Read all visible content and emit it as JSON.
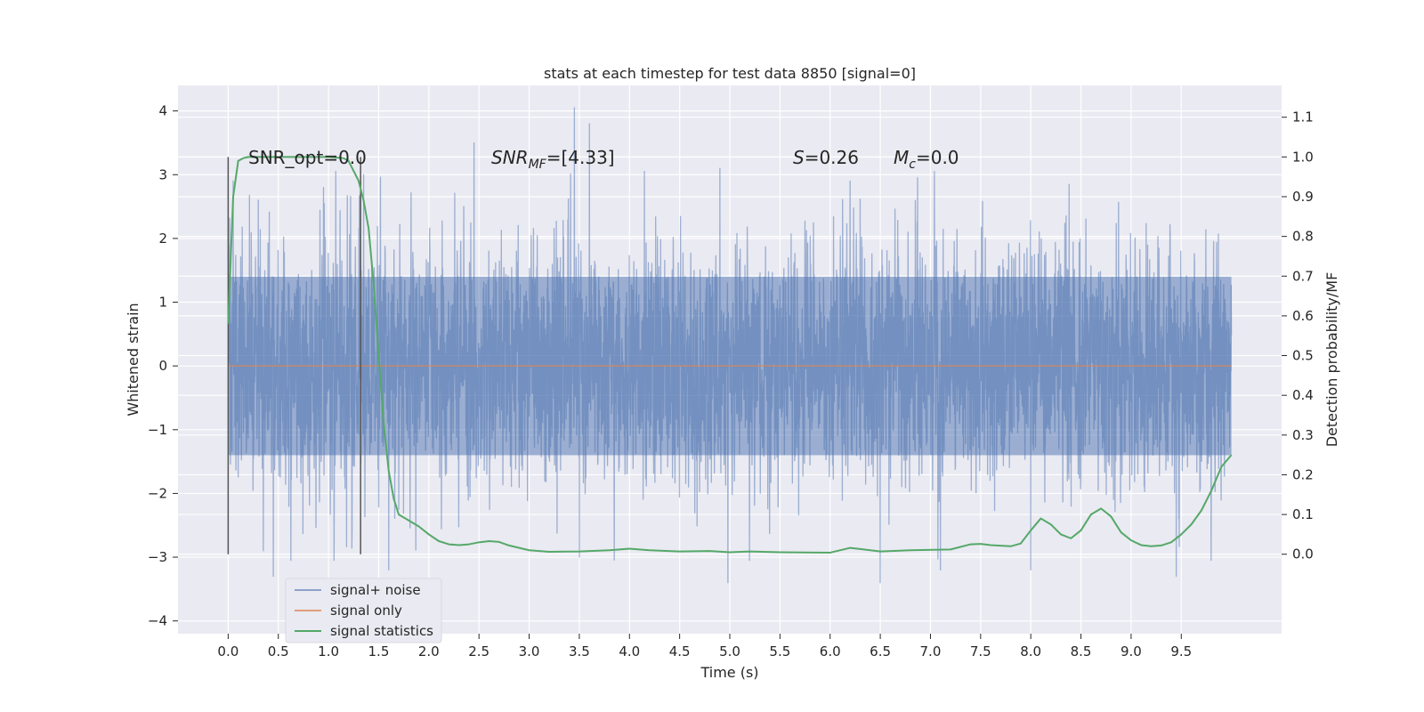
{
  "chart_data": {
    "type": "line",
    "title": "stats at each timestep for test data 8850 [signal=0]",
    "xlabel": "Time (s)",
    "ylabel": "Whitened strain",
    "y2label": "Detection probability/MF",
    "xlim": [
      -0.5,
      10.5
    ],
    "ylim": [
      -4.2,
      4.4
    ],
    "y2lim": [
      -0.2,
      1.18
    ],
    "xticks": [
      0.0,
      0.5,
      1.0,
      1.5,
      2.0,
      2.5,
      3.0,
      3.5,
      4.0,
      4.5,
      5.0,
      5.5,
      6.0,
      6.5,
      7.0,
      7.5,
      8.0,
      8.5,
      9.0,
      9.5
    ],
    "xtick_labels": [
      "0.0",
      "0.5",
      "1.0",
      "1.5",
      "2.0",
      "2.5",
      "3.0",
      "3.5",
      "4.0",
      "4.5",
      "5.0",
      "5.5",
      "6.0",
      "6.5",
      "7.0",
      "7.5",
      "8.0",
      "8.5",
      "9.0",
      "9.5"
    ],
    "yticks": [
      -4,
      -3,
      -2,
      -1,
      0,
      1,
      2,
      3,
      4
    ],
    "ytick_labels": [
      "−4",
      "−3",
      "−2",
      "−1",
      "0",
      "1",
      "2",
      "3",
      "4"
    ],
    "y2ticks": [
      0.0,
      0.1,
      0.2,
      0.3,
      0.4,
      0.5,
      0.6,
      0.7,
      0.8,
      0.9,
      1.0,
      1.1
    ],
    "y2tick_labels": [
      "0.0",
      "0.1",
      "0.2",
      "0.3",
      "0.4",
      "0.5",
      "0.6",
      "0.7",
      "0.8",
      "0.9",
      "1.0",
      "1.1"
    ],
    "grid": true,
    "legend_position": "lower-left",
    "colors": {
      "background": "#eaeaf2",
      "grid": "#ffffff",
      "signal_noise": "#4c72b0",
      "signal_only": "#dd8452",
      "signal_statistics": "#55a868",
      "markers": "#555555"
    },
    "series": [
      {
        "name": "signal+ noise",
        "role": "noise",
        "x_range": [
          0.0,
          10.0
        ],
        "envelope_upper": 1.4,
        "envelope_lower": -1.4,
        "peaks": [
          {
            "x": 0.05,
            "y": 2.9
          },
          {
            "x": 0.3,
            "y": 2.6
          },
          {
            "x": 0.95,
            "y": 2.8
          },
          {
            "x": 1.35,
            "y": 3.0
          },
          {
            "x": 2.45,
            "y": 3.5
          },
          {
            "x": 3.45,
            "y": 4.05
          },
          {
            "x": 3.6,
            "y": 3.8
          },
          {
            "x": 4.9,
            "y": 3.1
          },
          {
            "x": 6.2,
            "y": 2.9
          },
          {
            "x": 8.0,
            "y": 3.4
          },
          {
            "x": 0.35,
            "y": -2.9
          },
          {
            "x": 0.45,
            "y": -3.3
          },
          {
            "x": 1.6,
            "y": -3.2
          },
          {
            "x": 3.5,
            "y": -3.0
          },
          {
            "x": 4.98,
            "y": -3.4
          },
          {
            "x": 6.5,
            "y": -3.4
          },
          {
            "x": 7.1,
            "y": -3.2
          },
          {
            "x": 8.0,
            "y": -3.2
          },
          {
            "x": 9.45,
            "y": -3.3
          }
        ]
      },
      {
        "name": "signal only",
        "role": "signal",
        "x": [
          0.0,
          10.0
        ],
        "y": [
          0.0,
          0.0
        ]
      },
      {
        "name": "signal statistics",
        "role": "statistic",
        "axis": "right",
        "x": [
          0.0,
          0.05,
          0.1,
          0.15,
          0.2,
          0.3,
          0.5,
          0.8,
          1.0,
          1.15,
          1.2,
          1.3,
          1.35,
          1.4,
          1.45,
          1.5,
          1.55,
          1.6,
          1.65,
          1.7,
          1.8,
          1.9,
          2.0,
          2.1,
          2.2,
          2.3,
          2.4,
          2.5,
          2.6,
          2.7,
          2.8,
          3.0,
          3.2,
          3.5,
          3.8,
          4.0,
          4.2,
          4.5,
          4.8,
          5.0,
          5.2,
          5.5,
          6.0,
          6.2,
          6.3,
          6.5,
          6.8,
          7.2,
          7.4,
          7.5,
          7.6,
          7.8,
          7.9,
          8.0,
          8.1,
          8.2,
          8.3,
          8.4,
          8.5,
          8.6,
          8.7,
          8.8,
          8.9,
          9.0,
          9.1,
          9.2,
          9.3,
          9.4,
          9.5,
          9.6,
          9.7,
          9.8,
          9.9,
          10.0
        ],
        "y": [
          0.58,
          0.9,
          0.99,
          0.997,
          1.0,
          1.0,
          1.0,
          1.0,
          1.0,
          0.997,
          0.99,
          0.94,
          0.89,
          0.82,
          0.68,
          0.5,
          0.33,
          0.21,
          0.14,
          0.1,
          0.085,
          0.07,
          0.05,
          0.033,
          0.025,
          0.023,
          0.025,
          0.03,
          0.033,
          0.031,
          0.022,
          0.01,
          0.006,
          0.007,
          0.01,
          0.014,
          0.01,
          0.007,
          0.008,
          0.005,
          0.007,
          0.005,
          0.004,
          0.016,
          0.013,
          0.007,
          0.01,
          0.012,
          0.025,
          0.026,
          0.023,
          0.02,
          0.027,
          0.06,
          0.09,
          0.075,
          0.05,
          0.04,
          0.06,
          0.1,
          0.115,
          0.095,
          0.055,
          0.035,
          0.023,
          0.02,
          0.022,
          0.03,
          0.05,
          0.075,
          0.11,
          0.16,
          0.22,
          0.25
        ]
      }
    ],
    "vertical_markers": [
      {
        "x": 0.0,
        "y2_range": [
          0.0,
          1.0
        ]
      },
      {
        "x": 1.32,
        "y2_range": [
          0.0,
          1.0
        ]
      }
    ],
    "annotations": [
      {
        "id": "snr-opt",
        "text": "SNR_opt=0.0",
        "x": 0.2,
        "y": 3.2
      },
      {
        "id": "snr-mf",
        "symbol": "SNR",
        "sub": "MF",
        "text": "=[4.33]",
        "x": 2.6,
        "y": 3.2
      },
      {
        "id": "s-stat",
        "symbol": "S",
        "text": "=0.26",
        "x": 5.6,
        "y": 3.2
      },
      {
        "id": "mc",
        "symbol": "M",
        "sub": "c",
        "text": "=0.0",
        "x": 6.6,
        "y": 3.2
      }
    ]
  }
}
